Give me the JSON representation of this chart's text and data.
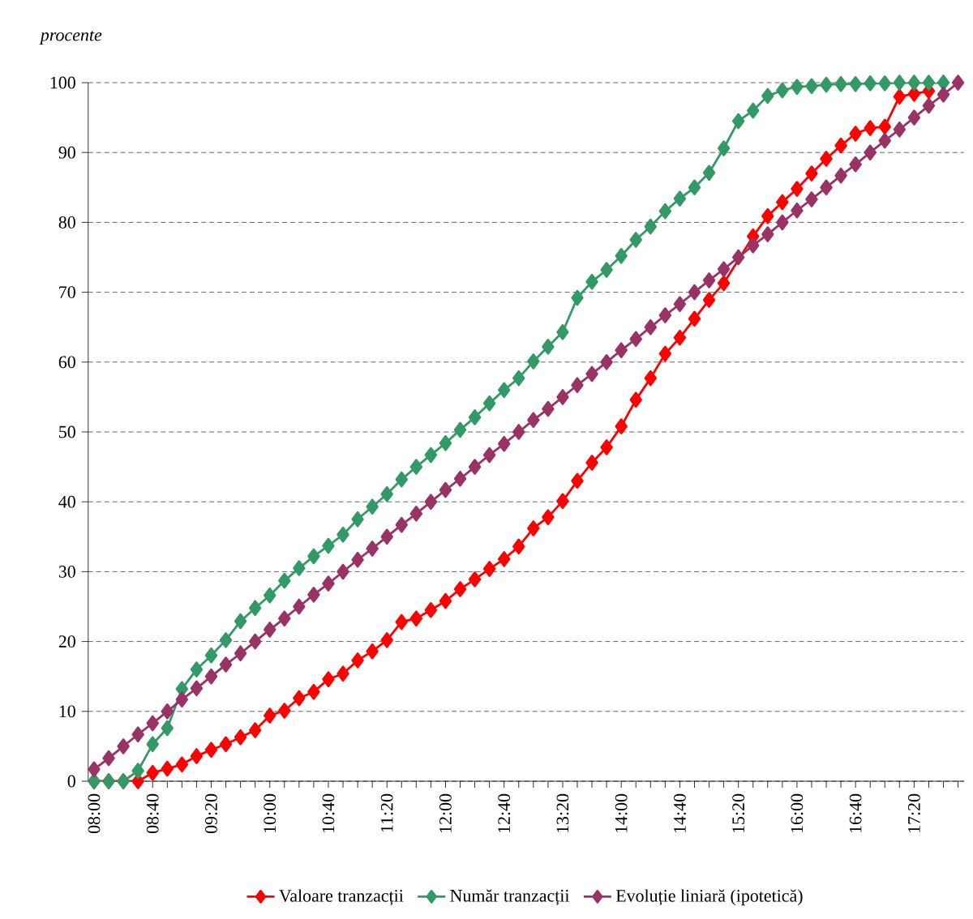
{
  "chart_data": {
    "type": "line",
    "ylabel": "procente",
    "categories": [
      "08:00",
      null,
      null,
      null,
      "08:40",
      null,
      null,
      null,
      "09:20",
      null,
      null,
      null,
      "10:00",
      null,
      null,
      null,
      "10:40",
      null,
      null,
      null,
      "11:20",
      null,
      null,
      null,
      "12:00",
      null,
      null,
      null,
      "12:40",
      null,
      null,
      null,
      "13:20",
      null,
      null,
      null,
      "14:00",
      null,
      null,
      null,
      "14:40",
      null,
      null,
      null,
      "15:20",
      null,
      null,
      null,
      "16:00",
      null,
      null,
      null,
      "16:40",
      null,
      null,
      null,
      "17:20",
      null,
      null,
      null
    ],
    "series": [
      {
        "name": "Valoare tranzacții",
        "color": "#ff0000",
        "values": [
          0,
          0,
          0,
          0,
          1.2,
          1.8,
          2.4,
          3.6,
          4.5,
          5.3,
          6.3,
          7.3,
          9.4,
          10.1,
          11.9,
          12.8,
          14.6,
          15.4,
          17.3,
          18.6,
          20.2,
          22.8,
          23.3,
          24.5,
          25.8,
          27.5,
          28.9,
          30.4,
          31.8,
          33.6,
          36.2,
          37.8,
          40.1,
          43.0,
          45.6,
          47.8,
          50.8,
          54.6,
          57.7,
          61.2,
          63.5,
          66.2,
          68.9,
          71.3,
          null,
          78.0,
          80.9,
          82.9,
          84.8,
          87.0,
          89.1,
          91.0,
          92.7,
          93.5,
          93.7,
          98.0,
          98.4,
          98.8,
          null,
          null
        ]
      },
      {
        "name": "Număr tranzacții",
        "color": "#339966",
        "values": [
          0,
          0,
          0,
          1.5,
          5.3,
          7.6,
          13.2,
          16.0,
          18.0,
          20.2,
          22.9,
          24.8,
          26.6,
          28.7,
          30.5,
          32.2,
          33.7,
          35.3,
          37.5,
          39.3,
          41.1,
          43.2,
          45.0,
          46.7,
          48.4,
          50.3,
          52.1,
          54.1,
          56.0,
          57.7,
          60.1,
          62.2,
          64.3,
          69.2,
          71.5,
          73.2,
          75.2,
          77.5,
          79.4,
          81.6,
          83.4,
          85.0,
          87.1,
          90.6,
          94.5,
          96.0,
          98.1,
          98.9,
          99.4,
          99.5,
          99.7,
          99.8,
          99.8,
          99.9,
          99.9,
          100,
          100,
          100,
          100,
          null
        ]
      },
      {
        "name": "Evoluție liniară (ipotetică)",
        "color": "#993366",
        "values": [
          1.7,
          3.3,
          5.0,
          6.7,
          8.3,
          10.0,
          11.7,
          13.3,
          15.0,
          16.7,
          18.3,
          20.0,
          21.7,
          23.3,
          25.0,
          26.7,
          28.3,
          30.0,
          31.7,
          33.3,
          35.0,
          36.7,
          38.3,
          40.0,
          41.7,
          43.3,
          45.0,
          46.7,
          48.3,
          50.0,
          51.7,
          53.3,
          55.0,
          56.7,
          58.3,
          60.0,
          61.7,
          63.3,
          65.0,
          66.7,
          68.3,
          70.0,
          71.7,
          73.3,
          75.0,
          76.7,
          78.3,
          80.0,
          81.7,
          83.3,
          85.0,
          86.7,
          88.3,
          90.0,
          91.7,
          93.3,
          95.0,
          96.7,
          98.3,
          100
        ]
      }
    ],
    "ylim": [
      0,
      100
    ],
    "yticks": [
      0,
      10,
      20,
      30,
      40,
      50,
      60,
      70,
      80,
      90,
      100
    ],
    "grid": "y",
    "legend": "bottom",
    "marker": "diamond",
    "line_style": "solid"
  }
}
